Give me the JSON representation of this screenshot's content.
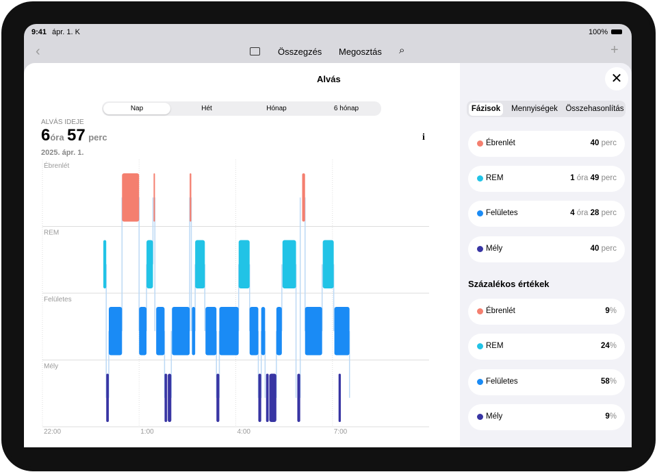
{
  "status": {
    "time": "9:41",
    "date": "ápr. 1. K",
    "battery": "100%"
  },
  "nav": {
    "summary": "Összegzés",
    "share": "Megosztás"
  },
  "sheet_title": "Alvás",
  "ranges": [
    "Nap",
    "Hét",
    "Hónap",
    "6 hónap"
  ],
  "summary": {
    "label": "ALVÁS IDEJE",
    "hours": "6",
    "hours_unit": "óra",
    "minutes": "57",
    "minutes_unit": "perc",
    "date": "2025. ápr. 1."
  },
  "chart_data": {
    "type": "hypnogram",
    "stages": [
      "Ébrenlét",
      "REM",
      "Felületes",
      "Mély"
    ],
    "colors": [
      "#f47f6f",
      "#21c3e6",
      "#1a8bf5",
      "#3835a3"
    ],
    "xlim": [
      22,
      34
    ],
    "xticks": [
      {
        "value": 22,
        "label": "22:00"
      },
      {
        "value": 25,
        "label": "1:00"
      },
      {
        "value": 28,
        "label": "4:00"
      },
      {
        "value": 31,
        "label": "7:00"
      }
    ],
    "segments": [
      {
        "stage": 1,
        "start": 23.89,
        "end": 23.98
      },
      {
        "stage": 3,
        "start": 23.98,
        "end": 24.06
      },
      {
        "stage": 2,
        "start": 24.06,
        "end": 24.47
      },
      {
        "stage": 0,
        "start": 24.47,
        "end": 25.0
      },
      {
        "stage": 2,
        "start": 25.0,
        "end": 25.23
      },
      {
        "stage": 1,
        "start": 25.23,
        "end": 25.43
      },
      {
        "stage": 0,
        "start": 25.45,
        "end": 25.49
      },
      {
        "stage": 2,
        "start": 25.53,
        "end": 25.79
      },
      {
        "stage": 3,
        "start": 25.79,
        "end": 25.87
      },
      {
        "stage": 3,
        "start": 25.89,
        "end": 26.0
      },
      {
        "stage": 2,
        "start": 26.02,
        "end": 26.57
      },
      {
        "stage": 0,
        "start": 26.57,
        "end": 26.62
      },
      {
        "stage": 2,
        "start": 26.64,
        "end": 26.74
      },
      {
        "stage": 1,
        "start": 26.74,
        "end": 27.04
      },
      {
        "stage": 2,
        "start": 27.06,
        "end": 27.4
      },
      {
        "stage": 3,
        "start": 27.4,
        "end": 27.49
      },
      {
        "stage": 2,
        "start": 27.49,
        "end": 28.09
      },
      {
        "stage": 1,
        "start": 28.09,
        "end": 28.43
      },
      {
        "stage": 2,
        "start": 28.43,
        "end": 28.7
      },
      {
        "stage": 3,
        "start": 28.7,
        "end": 28.79
      },
      {
        "stage": 2,
        "start": 28.79,
        "end": 28.91
      },
      {
        "stage": 3,
        "start": 28.94,
        "end": 29.02
      },
      {
        "stage": 3,
        "start": 29.04,
        "end": 29.26
      },
      {
        "stage": 2,
        "start": 29.26,
        "end": 29.43
      },
      {
        "stage": 1,
        "start": 29.45,
        "end": 29.87
      },
      {
        "stage": 3,
        "start": 29.91,
        "end": 30.0
      },
      {
        "stage": 0,
        "start": 30.06,
        "end": 30.15
      },
      {
        "stage": 2,
        "start": 30.15,
        "end": 30.68
      },
      {
        "stage": 1,
        "start": 30.7,
        "end": 31.04
      },
      {
        "stage": 2,
        "start": 31.06,
        "end": 31.53
      },
      {
        "stage": 3,
        "start": 31.19,
        "end": 31.26
      }
    ],
    "grid": true
  },
  "tabs": [
    "Fázisok",
    "Mennyiségek",
    "Összehasonlítás"
  ],
  "durations": [
    {
      "name": "Ébrenlét",
      "parts": [
        "40",
        "perc"
      ]
    },
    {
      "name": "REM",
      "parts": [
        "1",
        "óra",
        "49",
        "perc"
      ]
    },
    {
      "name": "Felületes",
      "parts": [
        "4",
        "óra",
        "28",
        "perc"
      ]
    },
    {
      "name": "Mély",
      "parts": [
        "40",
        "perc"
      ]
    }
  ],
  "percent_title": "Százalékos értékek",
  "percents": [
    {
      "name": "Ébrenlét",
      "value": "9",
      "unit": "%"
    },
    {
      "name": "REM",
      "value": "24",
      "unit": "%"
    },
    {
      "name": "Felületes",
      "value": "58",
      "unit": "%"
    },
    {
      "name": "Mély",
      "value": "9",
      "unit": "%"
    }
  ]
}
